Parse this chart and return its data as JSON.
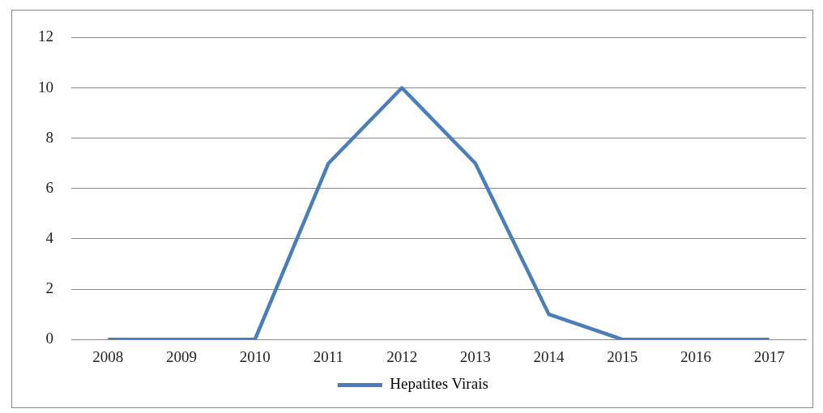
{
  "chart_data": {
    "type": "line",
    "categories": [
      "2008",
      "2009",
      "2010",
      "2011",
      "2012",
      "2013",
      "2014",
      "2015",
      "2016",
      "2017"
    ],
    "series": [
      {
        "name": "Hepatites Virais",
        "color": "#4a7ebb",
        "values": [
          0,
          0,
          0,
          7,
          10,
          7,
          1,
          0,
          0,
          0
        ]
      }
    ],
    "ylim": [
      0,
      12
    ],
    "yticks": [
      0,
      2,
      4,
      6,
      8,
      10,
      12
    ],
    "grid": "y",
    "legend": "bottom",
    "marker": "none",
    "line_style": "solid"
  }
}
